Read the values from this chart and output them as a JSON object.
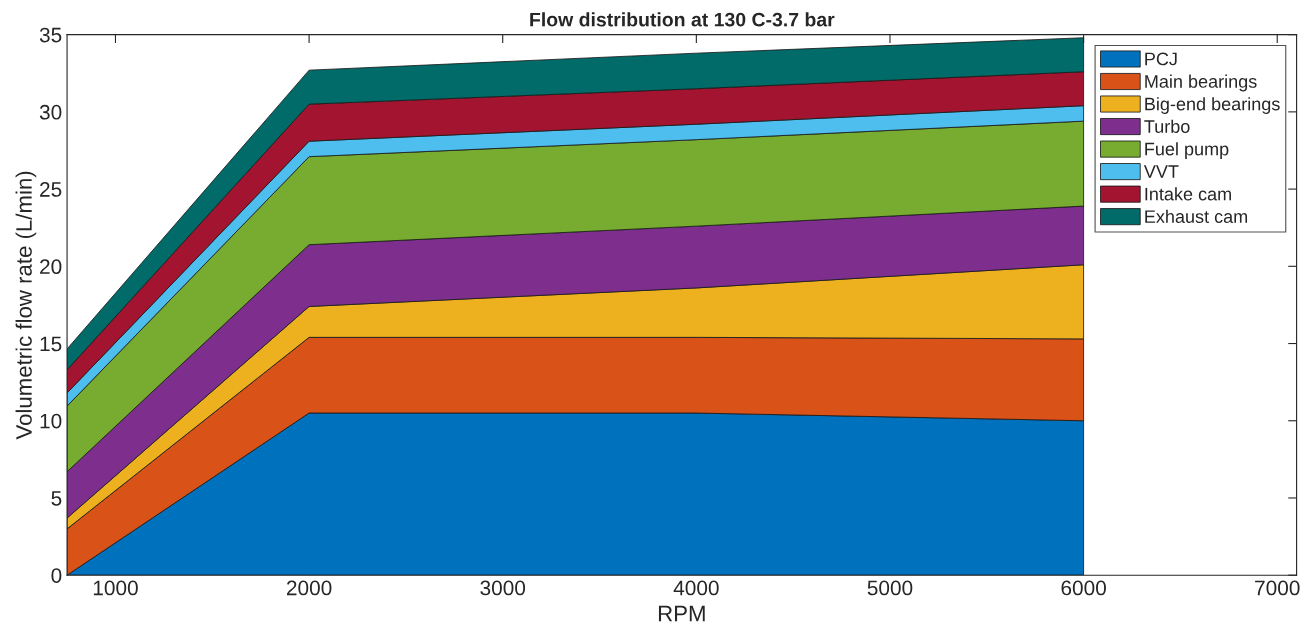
{
  "chart_data": {
    "type": "area",
    "stacked": true,
    "title": "Flow distribution at 130 C-3.7 bar",
    "xlabel": "RPM",
    "ylabel": "Volumetric flow rate (L/min)",
    "x": [
      750,
      2000,
      4000,
      6000
    ],
    "series": [
      {
        "name": "PCJ",
        "color": "#0072bd",
        "values": [
          0,
          10.5,
          10.5,
          10.0
        ]
      },
      {
        "name": "Main bearings",
        "color": "#d95319",
        "values": [
          3.0,
          4.9,
          4.9,
          5.3
        ]
      },
      {
        "name": "Big-end bearings",
        "color": "#edb120",
        "values": [
          0.7,
          2.0,
          3.2,
          4.8
        ]
      },
      {
        "name": "Turbo",
        "color": "#7e2f8e",
        "values": [
          3.0,
          4.0,
          4.0,
          3.8
        ]
      },
      {
        "name": "Fuel pump",
        "color": "#77ac30",
        "values": [
          4.25,
          5.7,
          5.6,
          5.5
        ]
      },
      {
        "name": "VVT",
        "color": "#4dbeee",
        "values": [
          0.85,
          1.0,
          1.0,
          1.0
        ]
      },
      {
        "name": "Intake cam",
        "color": "#a2142f",
        "values": [
          1.5,
          2.4,
          2.3,
          2.2
        ]
      },
      {
        "name": "Exhaust cam",
        "color": "#006b68",
        "values": [
          1.35,
          2.2,
          2.3,
          2.2
        ]
      }
    ],
    "xlim": [
      750,
      7100
    ],
    "xticks": [
      1000,
      2000,
      3000,
      4000,
      5000,
      6000,
      7000
    ],
    "ylim": [
      0,
      35
    ],
    "yticks": [
      0,
      5,
      10,
      15,
      20,
      25,
      30,
      35
    ],
    "grid": false,
    "legend": "top right"
  }
}
